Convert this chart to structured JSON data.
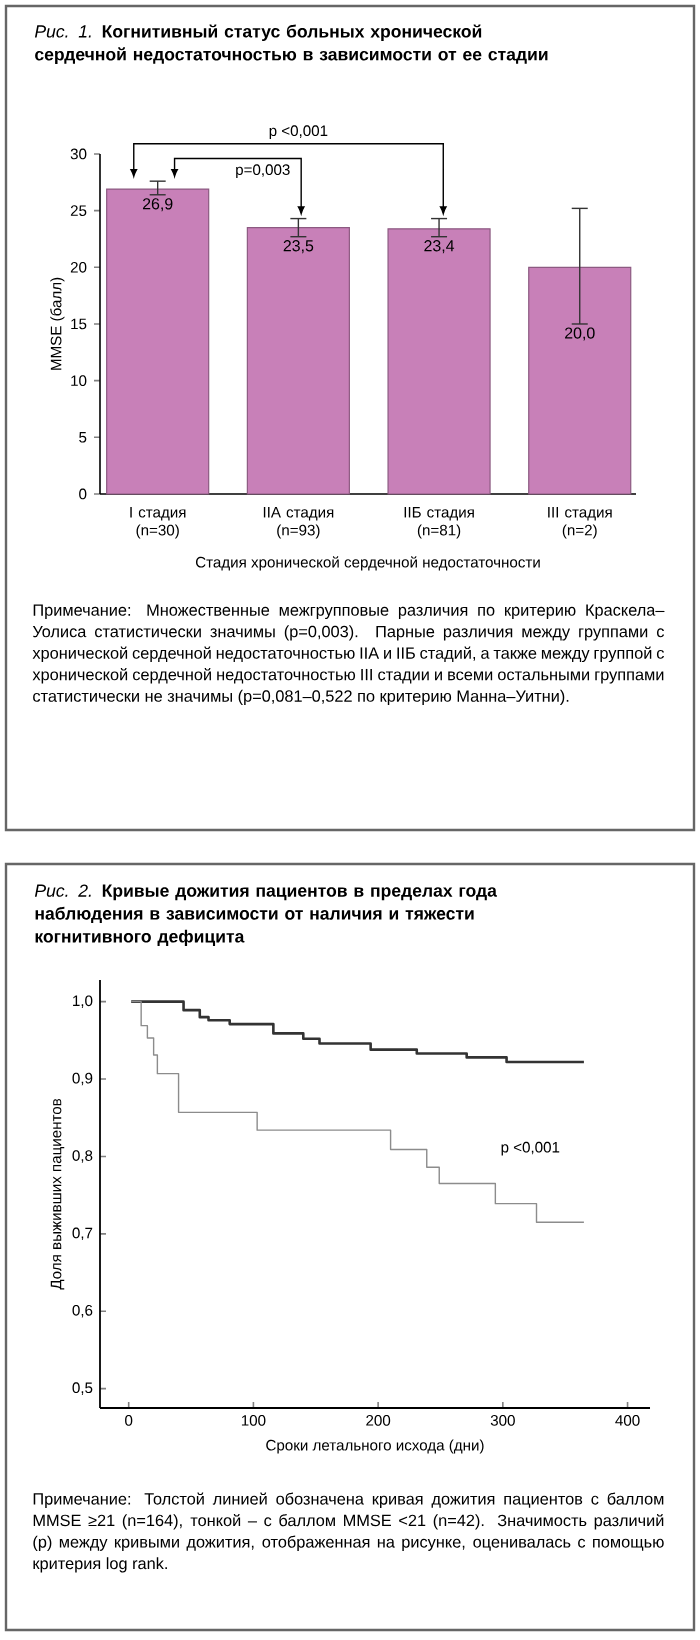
{
  "chart_data": [
    {
      "type": "bar",
      "title": "*Рис. 1.* **Когнитивный статус больных хронической сердечной недостаточностью в зависимости от ее стадии**",
      "xlabel": "Стадия хронической сердечной недостаточности",
      "ylabel": "MMSE (балл)",
      "categories": [
        "I стадия (n=30)",
        "IIA стадия (n=93)",
        "IIБ стадия (n=81)",
        "III стадия (n=2)"
      ],
      "values": [
        26.9,
        23.5,
        23.4,
        20.0
      ],
      "color": "#c880b8",
      "errors": [
        [
          26.4,
          27.6
        ],
        [
          22.7,
          24.3
        ],
        [
          22.7,
          24.3
        ],
        [
          15.0,
          25.2
        ]
      ],
      "value_labels": [
        "26,9",
        "23,5",
        "23,4",
        "20,0"
      ],
      "ylim": [
        0,
        30
      ],
      "yticks": [
        0,
        5,
        10,
        15,
        20,
        25,
        30
      ],
      "annotations": [
        "p <0,001",
        {
          "text": "p=0,003",
          "x": "IIA стадия (n=93)",
          "y": 24.3
        },
        "Примечание: Множественные межгрупповые различия по критерию Краскела–Уолиса статистически значимы (р=0,003). Парные различия между группами с хронической сердечной недостаточностью IIA и IIБ стадий, а также между группой с хронической сердечной недостаточностью III стадии и всеми остальными группами статистически не значимы (р=0,081–0,522 по критерию Манна–Уитни)."
      ]
    },
    {
      "type": "step",
      "title": "*Рис. 2.* **Кривые дожития пациентов в пределах года наблюдения в зависимости от наличия и тяжести когнитивного дефицита**",
      "xlabel": "Сроки летального исхода (дни)",
      "ylabel": "Доля выживших пациентов",
      "series": [
        {
          "color": "#333333",
          "x": [
            2,
            44,
            57,
            64,
            81,
            116,
            140,
            153,
            194,
            231,
            271,
            303,
            365
          ],
          "values": [
            1.0,
            0.989,
            0.98,
            0.976,
            0.971,
            0.959,
            0.952,
            0.946,
            0.938,
            0.933,
            0.928,
            0.922,
            0.922
          ]
        },
        {
          "color": "#8c8c8c",
          "x": [
            2,
            10,
            15,
            20,
            23,
            40,
            103,
            210,
            239,
            249,
            294,
            327,
            365
          ],
          "values": [
            1.0,
            0.969,
            0.953,
            0.931,
            0.907,
            0.857,
            0.834,
            0.809,
            0.786,
            0.765,
            0.739,
            0.715,
            0.715
          ]
        }
      ],
      "xlim": [
        -23,
        418
      ],
      "xticks": [
        0,
        100,
        200,
        300,
        400
      ],
      "ylim": [
        0.475,
        1.028
      ],
      "yticks": [
        {
          "value": 0.5,
          "label": "0,5"
        },
        {
          "value": 0.6,
          "label": "0,6"
        },
        {
          "value": 0.7,
          "label": "0,7"
        },
        {
          "value": 0.8,
          "label": "0,8"
        },
        {
          "value": 0.9,
          "label": "0,9"
        },
        {
          "value": 1.0,
          "label": "1,0"
        }
      ],
      "annotations": [
        "p <0,001",
        "Примечание: Толстой линией обозначена кривая дожития пациентов с баллом MMSE ≥21 (n=164), тонкой – с баллом MMSE <21 (n=42). Значимость различий (р) между кривыми дожития, отображенная на рисунке, оценивалась с помощью критерия log rank."
      ]
    }
  ]
}
